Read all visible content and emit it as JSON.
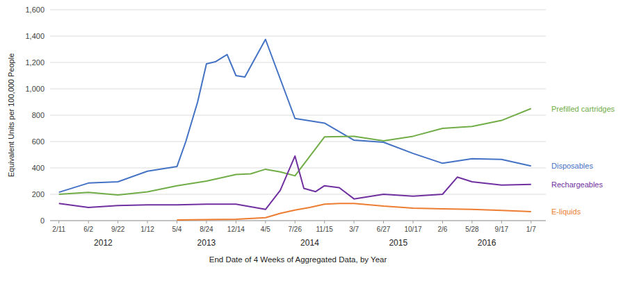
{
  "chart_data": {
    "type": "line",
    "x_label": "End Date of 4 Weeks of Aggregated Data, by Year",
    "y_label": "Equivalent Units per 100,000 People",
    "xlim": [
      -0.3,
      16.5
    ],
    "xticks": [
      {
        "value": 0,
        "label": "2/11"
      },
      {
        "value": 1,
        "label": "6/2"
      },
      {
        "value": 2,
        "label": "9/22"
      },
      {
        "value": 3,
        "label": "1/12"
      },
      {
        "value": 4,
        "label": "5/4"
      },
      {
        "value": 5,
        "label": "8/24"
      },
      {
        "value": 6,
        "label": "12/14"
      },
      {
        "value": 7,
        "label": "4/5"
      },
      {
        "value": 8,
        "label": "7/26"
      },
      {
        "value": 9,
        "label": "11/15"
      },
      {
        "value": 10,
        "label": "3/7"
      },
      {
        "value": 11,
        "label": "6/27"
      },
      {
        "value": 12,
        "label": "10/17"
      },
      {
        "value": 13,
        "label": "2/6"
      },
      {
        "value": 14,
        "label": "5/28"
      },
      {
        "value": 15,
        "label": "9/17"
      },
      {
        "value": 16,
        "label": "1/7"
      }
    ],
    "ylim": [
      0,
      1600
    ],
    "yticks": [
      0,
      200,
      400,
      600,
      800,
      {
        "value": 1000,
        "label": "1,000"
      },
      {
        "value": 1200,
        "label": "1,200"
      },
      {
        "value": 1400,
        "label": "1,400"
      },
      {
        "value": 1600,
        "label": "1,600"
      }
    ],
    "grid": true,
    "annotations": [
      {
        "text": "2012",
        "x": 1.5
      },
      {
        "text": "2013",
        "x": 5.0
      },
      {
        "text": "2014",
        "x": 8.5
      },
      {
        "text": "2015",
        "x": 11.5
      },
      {
        "text": "2016",
        "x": 14.5
      }
    ],
    "series": [
      {
        "name": "Disposables",
        "color": "#4472C4",
        "x": [
          0,
          1,
          2,
          3,
          4,
          4.3,
          4.7,
          5,
          5.3,
          5.7,
          6,
          6.3,
          7,
          8,
          9,
          10,
          11,
          12,
          13,
          14,
          15,
          16
        ],
        "values": [
          215,
          285,
          295,
          375,
          410,
          600,
          900,
          1190,
          1205,
          1260,
          1100,
          1090,
          1375,
          775,
          740,
          610,
          595,
          510,
          435,
          470,
          465,
          415
        ]
      },
      {
        "name": "Prefilled cartridges",
        "color": "#70AD47",
        "x": [
          0,
          1,
          2,
          3,
          4,
          5,
          6,
          6.5,
          7,
          7.5,
          8,
          9,
          10,
          11,
          12,
          13,
          14,
          15,
          16
        ],
        "values": [
          200,
          215,
          195,
          218,
          265,
          300,
          350,
          355,
          390,
          370,
          340,
          635,
          640,
          605,
          640,
          700,
          715,
          760,
          850
        ]
      },
      {
        "name": "Rechargeables",
        "color": "#7030A0",
        "x": [
          0,
          1,
          2,
          3,
          4,
          5,
          6,
          7,
          7.5,
          8,
          8.3,
          8.7,
          9,
          9.5,
          10,
          11,
          12,
          13,
          13.5,
          14,
          15,
          16
        ],
        "values": [
          130,
          100,
          115,
          120,
          120,
          125,
          125,
          85,
          230,
          490,
          245,
          220,
          265,
          250,
          165,
          200,
          185,
          200,
          330,
          295,
          270,
          275
        ]
      },
      {
        "name": "E-liquids",
        "color": "#ED7D31",
        "x": [
          4,
          5,
          6,
          7,
          7.5,
          8,
          8.5,
          9,
          9.5,
          10,
          11,
          12,
          13,
          14,
          15,
          16
        ],
        "values": [
          5,
          8,
          10,
          22,
          55,
          80,
          100,
          125,
          130,
          130,
          110,
          95,
          90,
          85,
          78,
          68
        ]
      }
    ]
  }
}
